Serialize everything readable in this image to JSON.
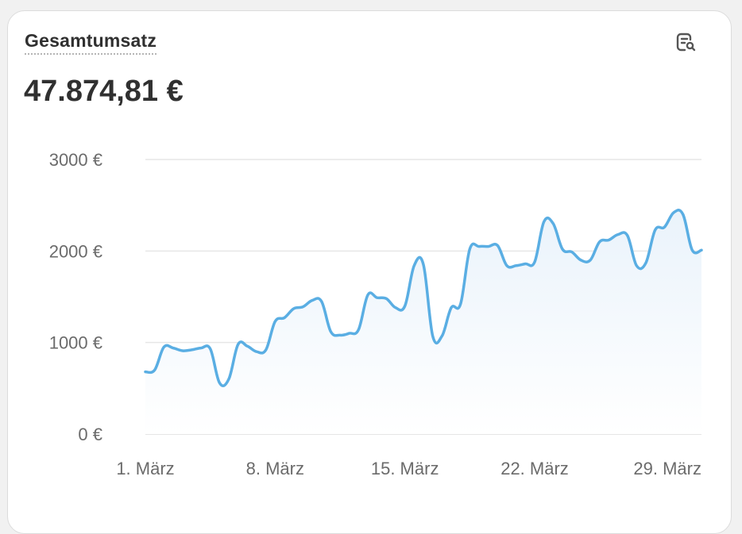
{
  "card": {
    "title": "Gesamtumsatz",
    "total": "47.874,81 €",
    "action_icon": "report-search-icon"
  },
  "colors": {
    "line": "#5aaee3",
    "grid": "#e6e6e6",
    "text": "#303030"
  },
  "chart_data": {
    "type": "area",
    "title": "",
    "xlabel": "",
    "ylabel": "",
    "ylim": [
      0,
      3000
    ],
    "yticks": [
      0,
      1000,
      2000,
      3000
    ],
    "ytick_labels": [
      "0 €",
      "1000 €",
      "2000 €",
      "3000 €"
    ],
    "xtick_labels": [
      "1. März",
      "8. März",
      "15. März",
      "22. März",
      "29. März"
    ],
    "xtick_days": [
      1,
      8,
      15,
      22,
      29
    ],
    "grid": true,
    "series": [
      {
        "x": [
          1,
          1.5,
          2,
          2.5,
          3,
          3.5,
          4,
          4.5,
          5,
          5.5,
          6,
          6.5,
          7,
          7.5,
          8,
          8.5,
          9,
          9.5,
          10,
          10.5,
          11,
          11.5,
          12,
          12.5,
          13,
          13.5,
          14,
          14.5,
          15,
          15.5,
          16,
          16.5,
          17,
          17.5,
          18,
          18.5,
          19,
          19.5,
          20,
          20.5,
          21,
          21.5,
          22,
          22.5,
          23,
          23.5,
          24,
          24.5,
          25,
          25.5,
          26,
          26.5,
          27,
          27.5,
          28,
          28.5,
          29,
          29.5,
          30,
          30.5,
          31
        ],
        "values": [
          680,
          700,
          950,
          940,
          910,
          920,
          940,
          930,
          560,
          600,
          980,
          960,
          900,
          920,
          1230,
          1270,
          1370,
          1390,
          1460,
          1450,
          1120,
          1080,
          1100,
          1140,
          1520,
          1490,
          1480,
          1380,
          1400,
          1840,
          1850,
          1070,
          1070,
          1380,
          1420,
          2020,
          2050,
          2050,
          2060,
          1840,
          1840,
          1860,
          1880,
          2320,
          2300,
          2020,
          1990,
          1900,
          1900,
          2100,
          2120,
          2180,
          2170,
          1840,
          1870,
          2230,
          2260,
          2420,
          2400,
          2010,
          2010
        ]
      }
    ]
  }
}
